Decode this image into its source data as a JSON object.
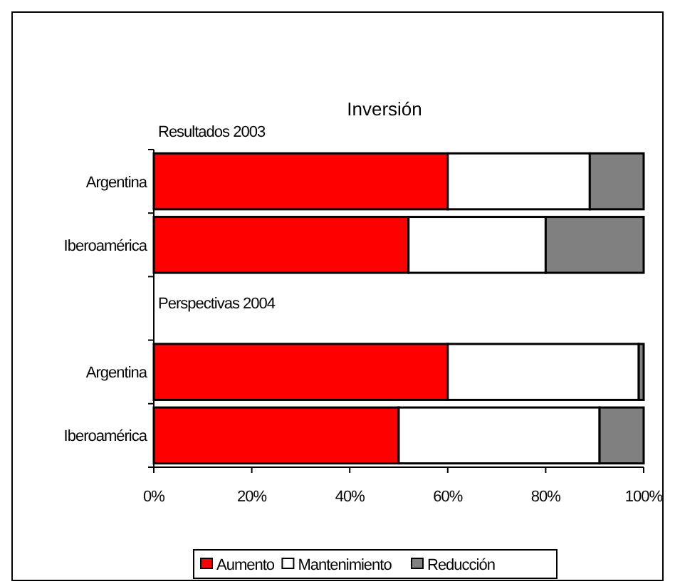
{
  "chart_data": {
    "type": "bar",
    "orientation": "horizontal",
    "stacked": true,
    "title": "Inversión",
    "annotations": [
      "Resultados 2003",
      "Perspectivas 2004"
    ],
    "categories": [
      "Argentina",
      "Iberoamérica",
      null,
      "Argentina",
      "Iberoamérica"
    ],
    "series": [
      {
        "name": "Aumento",
        "color": "#ff0000",
        "values": [
          60,
          52,
          null,
          60,
          50
        ]
      },
      {
        "name": "Mantenimiento",
        "color": "#ffffff",
        "values": [
          29,
          28,
          null,
          39,
          41
        ]
      },
      {
        "name": "Reducción",
        "color": "#808080",
        "values": [
          11,
          20,
          null,
          1,
          9
        ]
      }
    ],
    "xlim": [
      0,
      100
    ],
    "xticks": [
      {
        "value": 0,
        "label": "0%"
      },
      {
        "value": 20,
        "label": "20%"
      },
      {
        "value": 40,
        "label": "40%"
      },
      {
        "value": 60,
        "label": "60%"
      },
      {
        "value": 80,
        "label": "80%"
      },
      {
        "value": 100,
        "label": "100%"
      }
    ],
    "grid": false,
    "legend": "bottom"
  }
}
